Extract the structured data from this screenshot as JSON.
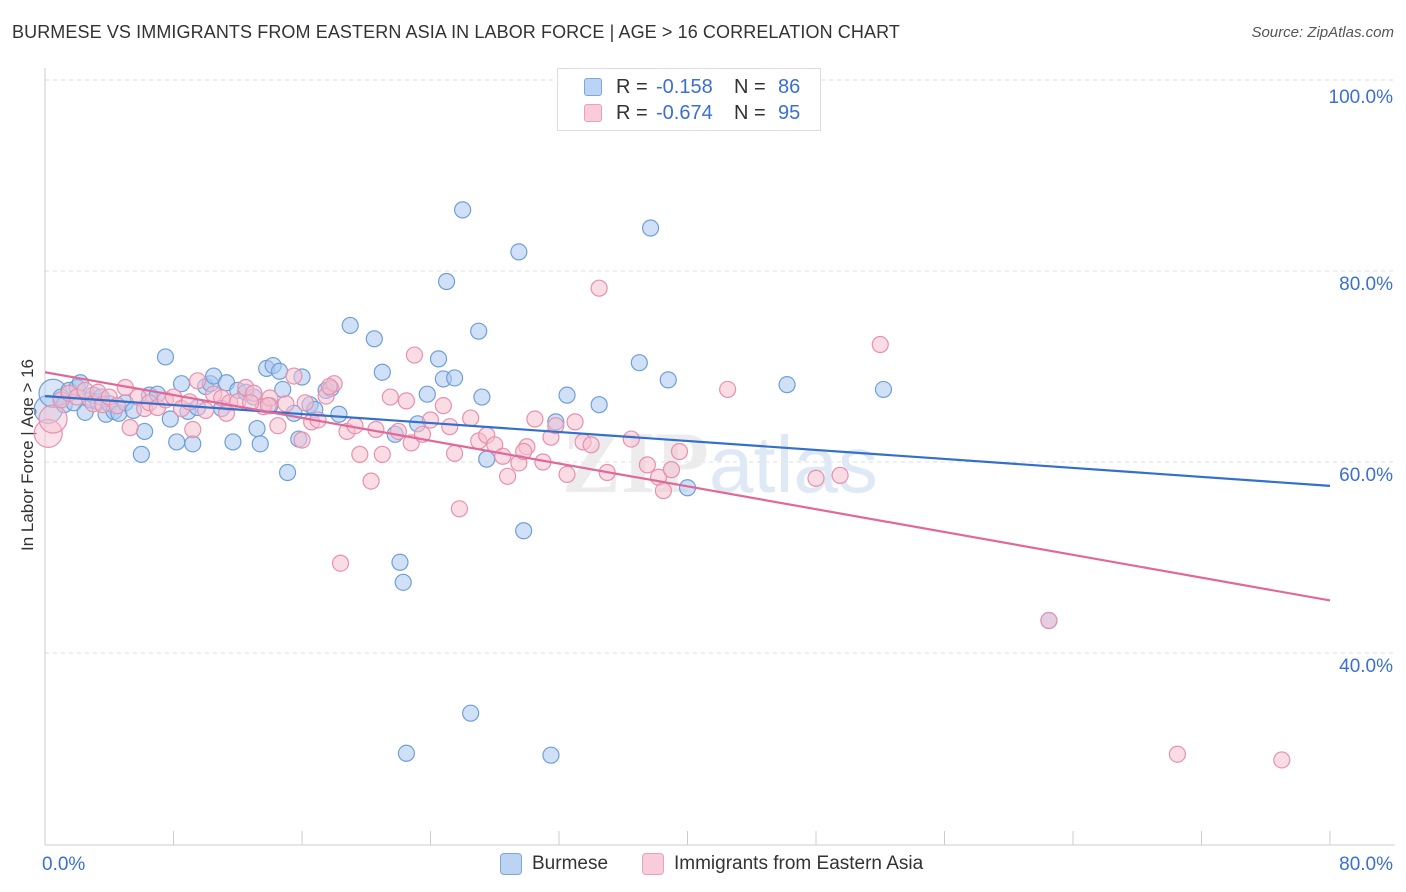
{
  "title": "BURMESE VS IMMIGRANTS FROM EASTERN ASIA IN LABOR FORCE | AGE > 16 CORRELATION CHART",
  "source": "Source: ZipAtlas.com",
  "legend": {
    "r_label": "R =",
    "n_label": "N =",
    "rows": [
      {
        "r": "-0.158",
        "n": "86"
      },
      {
        "r": "-0.674",
        "n": "95"
      }
    ]
  },
  "colors": {
    "burmese_fill": "#a9c8f0",
    "burmese_stroke": "#6f9fd8",
    "burmese_line": "#3370cc",
    "eastasia_fill": "#f6bfd0",
    "eastasia_stroke": "#e890ad",
    "eastasia_line": "#e0699a",
    "tick_label": "#3b6fd4",
    "grid": "#dddddd"
  },
  "chart_data": {
    "type": "scatter",
    "ylabel": "In Labor Force | Age > 16",
    "xlim": [
      0,
      80
    ],
    "ylim": [
      20,
      100
    ],
    "x_ticks": [
      "0.0%",
      "80.0%"
    ],
    "y_ticks": [
      "100.0%",
      "80.0%",
      "60.0%",
      "40.0%"
    ],
    "y_tick_values": [
      100,
      80,
      60,
      40
    ],
    "grid": "horizontal dashed",
    "legend_position": "top-center",
    "watermark": "ZIPatlas",
    "series": [
      {
        "name": "Burmese",
        "trend": {
          "x": [
            0,
            80
          ],
          "y": [
            66.9,
            57.5
          ]
        },
        "points": [
          [
            0.2,
            65.5
          ],
          [
            0.5,
            67.2
          ],
          [
            1,
            66.8
          ],
          [
            1.2,
            66
          ],
          [
            1.5,
            67.5
          ],
          [
            1.8,
            66.2
          ],
          [
            2,
            67.8
          ],
          [
            2.2,
            68.3
          ],
          [
            2.5,
            65.2
          ],
          [
            2.8,
            66.5
          ],
          [
            3,
            67
          ],
          [
            3.3,
            66.3
          ],
          [
            3.5,
            66.8
          ],
          [
            3.8,
            65
          ],
          [
            4,
            66.1
          ],
          [
            4.3,
            65.3
          ],
          [
            4.6,
            65.1
          ],
          [
            5,
            66.2
          ],
          [
            5.5,
            65.4
          ],
          [
            6,
            60.8
          ],
          [
            6.2,
            63.2
          ],
          [
            6.5,
            67
          ],
          [
            7,
            67.1
          ],
          [
            7.5,
            71
          ],
          [
            7.8,
            64.5
          ],
          [
            8.2,
            62.1
          ],
          [
            8.5,
            68.2
          ],
          [
            8.9,
            65.3
          ],
          [
            9.2,
            61.9
          ],
          [
            9.5,
            65.7
          ],
          [
            10,
            67.9
          ],
          [
            10.3,
            68.2
          ],
          [
            10.5,
            69
          ],
          [
            11,
            65.6
          ],
          [
            11.3,
            68.3
          ],
          [
            11.7,
            62.1
          ],
          [
            12,
            67.5
          ],
          [
            12.5,
            67.3
          ],
          [
            13,
            66.8
          ],
          [
            13.2,
            63.5
          ],
          [
            13.4,
            61.9
          ],
          [
            13.8,
            69.8
          ],
          [
            14,
            65.9
          ],
          [
            14.2,
            70.1
          ],
          [
            14.6,
            69.5
          ],
          [
            14.8,
            67.6
          ],
          [
            15.1,
            58.9
          ],
          [
            15.5,
            65.1
          ],
          [
            15.8,
            62.4
          ],
          [
            16,
            68.9
          ],
          [
            16.5,
            66
          ],
          [
            16.8,
            65.5
          ],
          [
            17.5,
            67.5
          ],
          [
            17.8,
            67.7
          ],
          [
            18.3,
            65
          ],
          [
            19,
            74.3
          ],
          [
            20.5,
            72.9
          ],
          [
            21,
            69.4
          ],
          [
            21.8,
            62.9
          ],
          [
            22.1,
            49.5
          ],
          [
            22.3,
            47.4
          ],
          [
            22.5,
            29.5
          ],
          [
            23.2,
            64
          ],
          [
            23.8,
            67.1
          ],
          [
            24.5,
            70.8
          ],
          [
            24.8,
            68.7
          ],
          [
            25,
            78.9
          ],
          [
            25.5,
            68.8
          ],
          [
            26,
            86.4
          ],
          [
            26.5,
            33.7
          ],
          [
            27,
            73.7
          ],
          [
            27.2,
            66.8
          ],
          [
            27.5,
            60.3
          ],
          [
            29.5,
            82
          ],
          [
            29.8,
            52.8
          ],
          [
            31.5,
            29.3
          ],
          [
            31.8,
            64.2
          ],
          [
            32.5,
            67
          ],
          [
            34.5,
            66
          ],
          [
            37.7,
            84.5
          ],
          [
            38.8,
            68.6
          ],
          [
            40,
            57.3
          ],
          [
            46.2,
            68.1
          ],
          [
            52.2,
            67.6
          ],
          [
            62.5,
            43.4
          ],
          [
            37,
            70.4
          ]
        ]
      },
      {
        "name": "Immigrants from Eastern Asia",
        "trend": {
          "x": [
            0,
            80
          ],
          "y": [
            69.4,
            45.5
          ]
        },
        "points": [
          [
            0.2,
            63
          ],
          [
            0.5,
            64.5
          ],
          [
            1,
            66.5
          ],
          [
            1.5,
            67.2
          ],
          [
            2,
            66.8
          ],
          [
            2.5,
            67.5
          ],
          [
            3,
            66.1
          ],
          [
            3.3,
            67.3
          ],
          [
            3.6,
            66
          ],
          [
            4,
            66.8
          ],
          [
            4.5,
            65.9
          ],
          [
            5,
            67.8
          ],
          [
            5.3,
            63.6
          ],
          [
            5.8,
            66.8
          ],
          [
            6.2,
            65.6
          ],
          [
            6.5,
            66.2
          ],
          [
            7,
            65.7
          ],
          [
            7.5,
            66.5
          ],
          [
            8,
            66.8
          ],
          [
            8.5,
            65.6
          ],
          [
            9,
            66.3
          ],
          [
            9.5,
            68.5
          ],
          [
            10,
            65.4
          ],
          [
            10.5,
            67.1
          ],
          [
            11,
            66.7
          ],
          [
            11.5,
            66.2
          ],
          [
            12,
            66.3
          ],
          [
            12.5,
            67.8
          ],
          [
            13,
            67.2
          ],
          [
            13.6,
            65.8
          ],
          [
            14,
            66.7
          ],
          [
            14.5,
            63.8
          ],
          [
            15,
            66.1
          ],
          [
            15.5,
            69
          ],
          [
            16,
            62.3
          ],
          [
            16.2,
            66.2
          ],
          [
            16.6,
            64.2
          ],
          [
            17,
            64.4
          ],
          [
            17.5,
            66.9
          ],
          [
            18,
            68.2
          ],
          [
            18.4,
            49.4
          ],
          [
            18.8,
            63.2
          ],
          [
            19.3,
            63.8
          ],
          [
            19.6,
            60.8
          ],
          [
            20.3,
            58
          ],
          [
            20.6,
            63.4
          ],
          [
            21,
            60.8
          ],
          [
            21.5,
            66.8
          ],
          [
            22,
            63.2
          ],
          [
            22.5,
            66.4
          ],
          [
            22.8,
            62
          ],
          [
            23,
            71.2
          ],
          [
            23.5,
            62.9
          ],
          [
            24,
            64.4
          ],
          [
            24.8,
            65.9
          ],
          [
            25.5,
            60.9
          ],
          [
            25.8,
            55.1
          ],
          [
            26.5,
            64.6
          ],
          [
            27,
            62.2
          ],
          [
            27.5,
            62.8
          ],
          [
            28,
            61.8
          ],
          [
            28.5,
            60.6
          ],
          [
            28.8,
            58.5
          ],
          [
            29.5,
            59.9
          ],
          [
            30,
            61.6
          ],
          [
            30.5,
            64.5
          ],
          [
            31,
            60
          ],
          [
            31.5,
            62.6
          ],
          [
            32.5,
            58.7
          ],
          [
            33,
            64.2
          ],
          [
            33.5,
            62.1
          ],
          [
            34,
            61.8
          ],
          [
            34.5,
            78.2
          ],
          [
            35,
            58.9
          ],
          [
            36.5,
            62.4
          ],
          [
            37.5,
            59.7
          ],
          [
            38.2,
            58.4
          ],
          [
            38.5,
            57
          ],
          [
            39,
            59.2
          ],
          [
            39.5,
            61.1
          ],
          [
            42.5,
            67.6
          ],
          [
            48,
            58.3
          ],
          [
            49.5,
            58.6
          ],
          [
            52,
            72.3
          ],
          [
            70.5,
            29.4
          ],
          [
            77,
            28.8
          ],
          [
            25.2,
            63.7
          ],
          [
            29.8,
            61.1
          ],
          [
            31.8,
            63.8
          ],
          [
            11.3,
            65.1
          ],
          [
            13.9,
            65.9
          ],
          [
            17.7,
            67.9
          ],
          [
            9.2,
            63.4
          ],
          [
            12.8,
            66.2
          ],
          [
            62.5,
            43.4
          ]
        ]
      }
    ]
  },
  "bottom_legend": {
    "items": [
      "Burmese",
      "Immigrants from Eastern Asia"
    ]
  }
}
